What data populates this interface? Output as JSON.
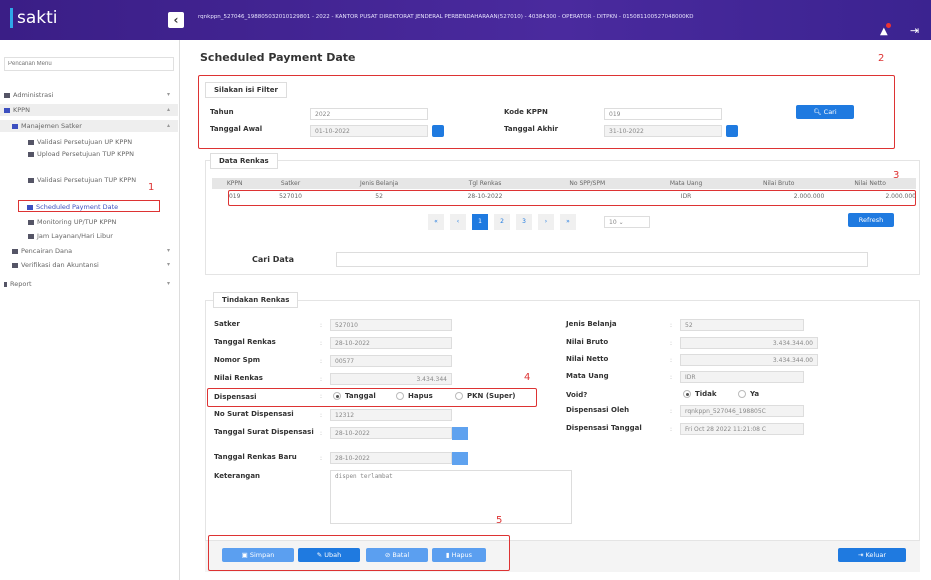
{
  "header": {
    "app_name": "sakti",
    "user_info": "rqnkppn_527046_198805032010129801 - 2022 - KANTOR PUSAT DIREKTORAT JENDERAL PERBENDAHARAAN(527010) - 40384300 - OPERATOR - DITPKN - 015081100527048000KD"
  },
  "sidebar": {
    "search_placeholder": "Pencarian Menu",
    "items": [
      {
        "label": "Administrasi"
      },
      {
        "label": "KPPN"
      },
      {
        "label": "Manajemen Satker"
      },
      {
        "label": "Validasi Persetujuan UP KPPN"
      },
      {
        "label": "Upload Persetujuan TUP KPPN"
      },
      {
        "label": "Validasi Persetujuan TUP KPPN"
      },
      {
        "label": "Scheduled Payment Date"
      },
      {
        "label": "Monitoring UP/TUP KPPN"
      },
      {
        "label": "Jam Layanan/Hari Libur"
      },
      {
        "label": "Pencairan Dana"
      },
      {
        "label": "Verifikasi dan Akuntansi"
      },
      {
        "label": "Report"
      }
    ]
  },
  "page_title": "Scheduled Payment Date",
  "annotations": [
    "1",
    "2",
    "3",
    "4",
    "5"
  ],
  "filter": {
    "title": "Silakan isi Filter",
    "tahun_label": "Tahun",
    "tahun": "2022",
    "kode_kppn_label": "Kode KPPN",
    "kode_kppn": "019",
    "tgl_awal_label": "Tanggal Awal",
    "tgl_awal": "01-10-2022",
    "tgl_akhir_label": "Tanggal Akhir",
    "tgl_akhir": "31-10-2022",
    "cari_label": "Cari"
  },
  "data_renkas": {
    "title": "Data Renkas",
    "columns": [
      "KPPN",
      "Satker",
      "Jenis Belanja",
      "Tgl Renkas",
      "No SPP/SPM",
      "Mata Uang",
      "Nilai Bruto",
      "Nilai Netto"
    ],
    "rows": [
      [
        "019",
        "527010",
        "52",
        "28-10-2022",
        "",
        "IDR",
        "2.000.000",
        "2.000.000"
      ]
    ],
    "pagination": {
      "first": "«",
      "prev": "‹",
      "pages": [
        "1",
        "2",
        "3"
      ],
      "current": "1",
      "next": "›",
      "last": "»",
      "page_size": "10"
    },
    "refresh_label": "Refresh",
    "cari_data_label": "Cari Data",
    "cari_data_value": ""
  },
  "tindakan": {
    "title": "Tindakan Renkas",
    "satker_label": "Satker",
    "satker": "527010",
    "tgl_renkas_label": "Tanggal Renkas",
    "tgl_renkas": "28-10-2022",
    "nomor_spm_label": "Nomor Spm",
    "nomor_spm": "00577",
    "nilai_renkas_label": "Nilai Renkas",
    "nilai_renkas": "3.434.344",
    "dispensasi_label": "Dispensasi",
    "dispensasi_options": [
      "Tanggal",
      "Hapus",
      "PKN (Super)"
    ],
    "dispensasi_selected": "Tanggal",
    "no_surat_label": "No Surat Dispensasi",
    "no_surat": "12312",
    "tgl_surat_label": "Tanggal Surat Dispensasi",
    "tgl_surat": "28-10-2022",
    "tgl_baru_label": "Tanggal Renkas Baru",
    "tgl_baru": "28-10-2022",
    "keterangan_label": "Keterangan",
    "keterangan": "dispen terlambat",
    "jenis_belanja_label": "Jenis Belanja",
    "jenis_belanja": "52",
    "nilai_bruto_label": "Nilai Bruto",
    "nilai_bruto": "3.434.344.00",
    "nilai_netto_label": "Nilai Netto",
    "nilai_netto": "3.434.344.00",
    "mata_uang_label": "Mata Uang",
    "mata_uang": "IDR",
    "void_label": "Void?",
    "void_options": [
      "Tidak",
      "Ya"
    ],
    "void_selected": "Tidak",
    "disp_oleh_label": "Dispensasi Oleh",
    "disp_oleh": "rqnkppn_527046_198805C",
    "disp_tgl_label": "Dispensasi Tanggal",
    "disp_tgl": "Fri Oct 28 2022 11:21:08 C"
  },
  "actions": {
    "simpan": "Simpan",
    "ubah": "Ubah",
    "batal": "Batal",
    "hapus": "Hapus",
    "keluar": "Keluar"
  },
  "colors": {
    "header": "#3a1e86",
    "primary": "#1f7ae0",
    "annotation": "#dd3333"
  }
}
